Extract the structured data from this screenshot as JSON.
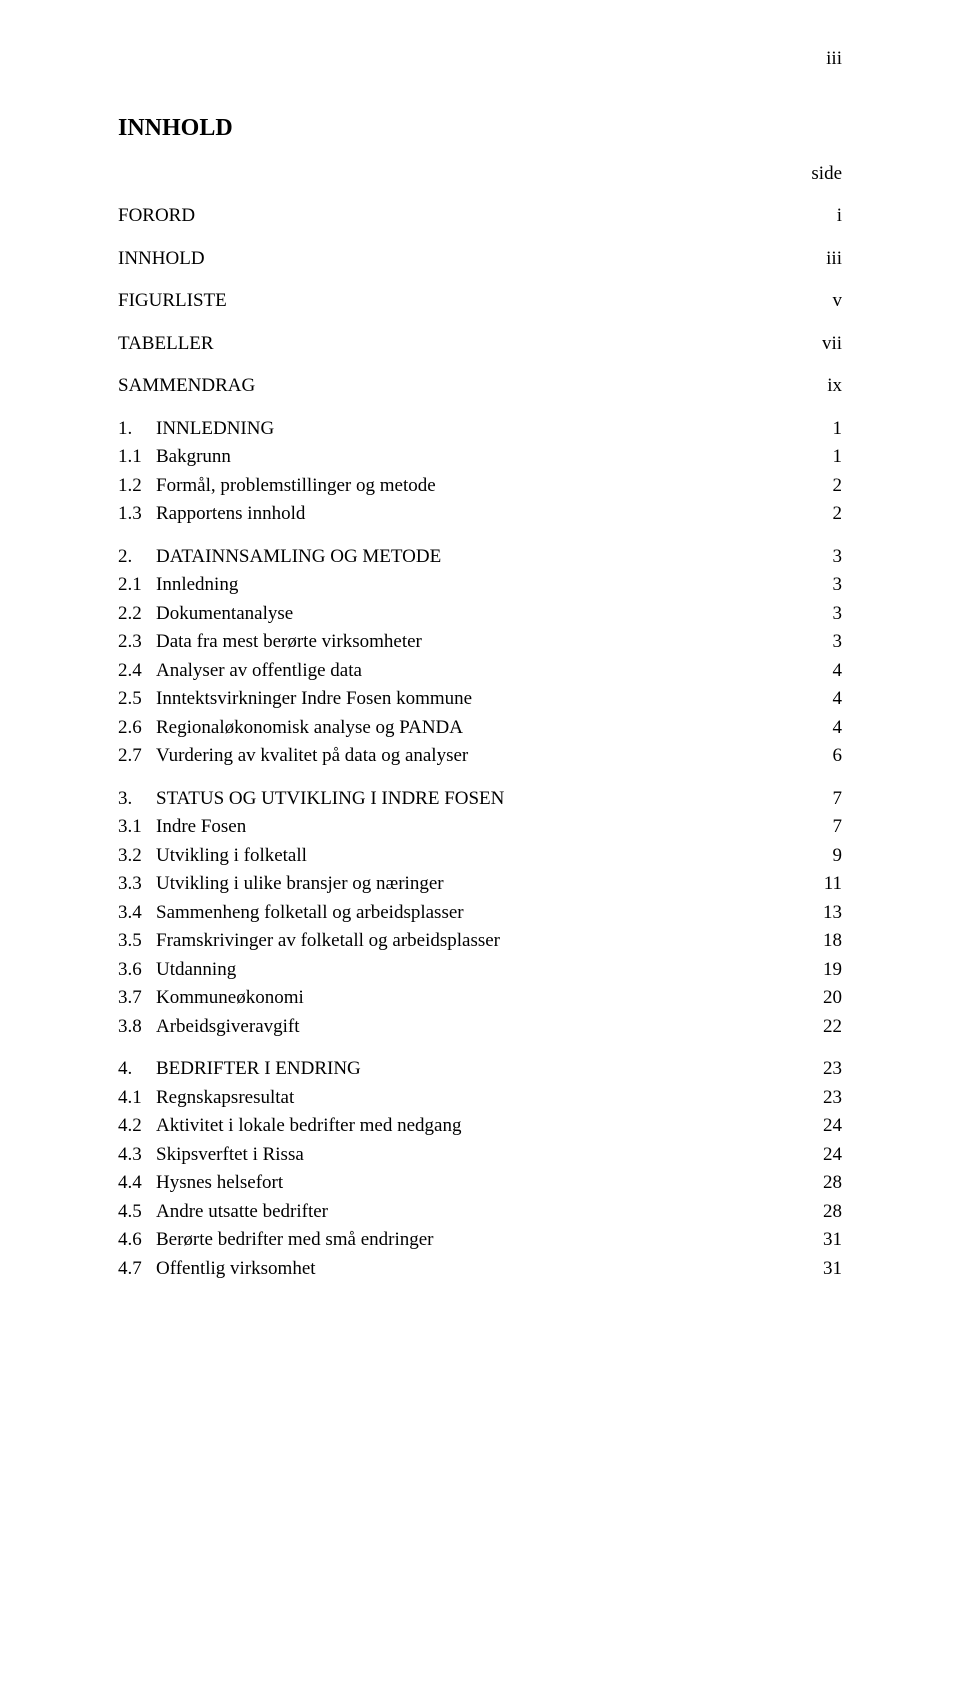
{
  "page_number_top": "iii",
  "title": "INNHOLD",
  "side_label": "side",
  "frontmatter": [
    {
      "label": "FORORD",
      "page": "i"
    },
    {
      "label": "INNHOLD",
      "page": "iii"
    },
    {
      "label": "FIGURLISTE",
      "page": "v"
    },
    {
      "label": "TABELLER",
      "page": "vii"
    },
    {
      "label": "SAMMENDRAG",
      "page": "ix"
    }
  ],
  "sections": [
    {
      "num": "1.",
      "title": "INNLEDNING",
      "page": "1",
      "subs": [
        {
          "num": "1.1",
          "title": "Bakgrunn",
          "page": "1"
        },
        {
          "num": "1.2",
          "title": "Formål, problemstillinger og metode",
          "page": "2"
        },
        {
          "num": "1.3",
          "title": "Rapportens innhold",
          "page": "2"
        }
      ]
    },
    {
      "num": "2.",
      "title": "DATAINNSAMLING OG METODE",
      "page": "3",
      "subs": [
        {
          "num": "2.1",
          "title": "Innledning",
          "page": "3"
        },
        {
          "num": "2.2",
          "title": "Dokumentanalyse",
          "page": "3"
        },
        {
          "num": "2.3",
          "title": "Data fra mest berørte virksomheter",
          "page": "3"
        },
        {
          "num": "2.4",
          "title": "Analyser av offentlige data",
          "page": "4"
        },
        {
          "num": "2.5",
          "title": "Inntektsvirkninger Indre Fosen kommune",
          "page": "4"
        },
        {
          "num": "2.6",
          "title": "Regionaløkonomisk analyse og PANDA",
          "page": "4"
        },
        {
          "num": "2.7",
          "title": "Vurdering av kvalitet på data og analyser",
          "page": "6"
        }
      ]
    },
    {
      "num": "3.",
      "title": "STATUS OG UTVIKLING I INDRE FOSEN",
      "page": "7",
      "subs": [
        {
          "num": "3.1",
          "title": "Indre Fosen",
          "page": "7"
        },
        {
          "num": "3.2",
          "title": "Utvikling i folketall",
          "page": "9"
        },
        {
          "num": "3.3",
          "title": "Utvikling i ulike bransjer og næringer",
          "page": "11"
        },
        {
          "num": "3.4",
          "title": "Sammenheng folketall og arbeidsplasser",
          "page": "13"
        },
        {
          "num": "3.5",
          "title": "Framskrivinger av folketall og arbeidsplasser",
          "page": "18"
        },
        {
          "num": "3.6",
          "title": "Utdanning",
          "page": "19"
        },
        {
          "num": "3.7",
          "title": "Kommuneøkonomi",
          "page": "20"
        },
        {
          "num": "3.8",
          "title": "Arbeidsgiveravgift",
          "page": "22"
        }
      ]
    },
    {
      "num": "4.",
      "title": "BEDRIFTER I ENDRING",
      "page": "23",
      "subs": [
        {
          "num": "4.1",
          "title": "Regnskapsresultat",
          "page": "23"
        },
        {
          "num": "4.2",
          "title": "Aktivitet i lokale bedrifter med nedgang",
          "page": "24"
        },
        {
          "num": "4.3",
          "title": "Skipsverftet i Rissa",
          "page": "24"
        },
        {
          "num": "4.4",
          "title": "Hysnes helsefort",
          "page": "28"
        },
        {
          "num": "4.5",
          "title": "Andre utsatte bedrifter",
          "page": "28"
        },
        {
          "num": "4.6",
          "title": "Berørte bedrifter med små endringer",
          "page": "31"
        },
        {
          "num": "4.7",
          "title": "Offentlig virksomhet",
          "page": "31"
        }
      ]
    }
  ]
}
